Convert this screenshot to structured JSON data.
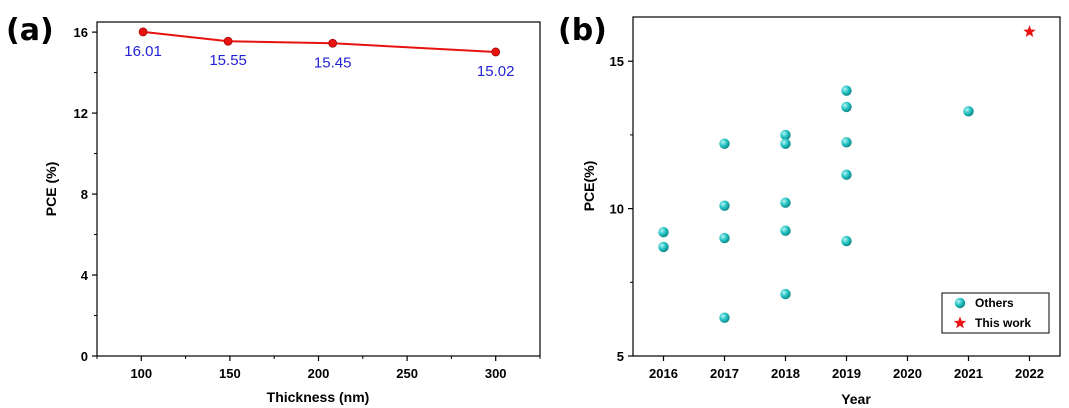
{
  "colors": {
    "line": "#e8130f",
    "label": "#2323d6",
    "teal": "#22c4c4",
    "star": "#ee1111"
  },
  "chart_data": [
    {
      "panel": "(a)",
      "type": "line",
      "xlabel": "Thickness (nm)",
      "ylabel": "PCE (%)",
      "xlim": [
        75,
        325
      ],
      "ylim": [
        0,
        16.5
      ],
      "xticks": [
        100,
        150,
        200,
        250,
        300
      ],
      "yticks": [
        0,
        4,
        8,
        12,
        16
      ],
      "series": [
        {
          "x": [
            101,
            149,
            208,
            300
          ],
          "y": [
            16.01,
            15.55,
            15.45,
            15.02
          ]
        }
      ],
      "data_labels": [
        "16.01",
        "15.55",
        "15.45",
        "15.02"
      ]
    },
    {
      "panel": "(b)",
      "type": "scatter",
      "xlabel": "Year",
      "ylabel": "PCE(%)",
      "xlim": [
        2015.5,
        2022.5
      ],
      "ylim": [
        5,
        16.5
      ],
      "xticks": [
        2016,
        2017,
        2018,
        2019,
        2020,
        2021,
        2022
      ],
      "yticks": [
        5,
        10,
        15
      ],
      "legend": "bottom-right",
      "series": [
        {
          "name": "Others",
          "x": [
            2016,
            2016,
            2017,
            2017,
            2017,
            2017,
            2018,
            2018,
            2018,
            2018,
            2018,
            2019,
            2019,
            2019,
            2019,
            2019,
            2021
          ],
          "y": [
            9.2,
            8.7,
            12.2,
            10.1,
            9.0,
            6.3,
            12.5,
            12.2,
            10.2,
            9.25,
            7.1,
            14.0,
            13.45,
            12.25,
            11.15,
            8.9,
            13.3
          ]
        },
        {
          "name": "This work",
          "x": [
            2022
          ],
          "y": [
            16.0
          ]
        }
      ]
    }
  ]
}
